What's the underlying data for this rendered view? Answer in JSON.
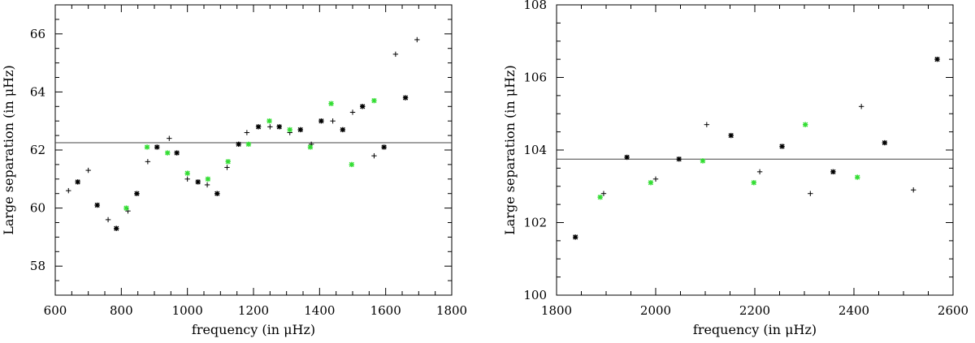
{
  "chart_data": [
    {
      "type": "scatter",
      "xlabel": "frequency (in μHz)",
      "ylabel": "Large separation (in μHz)",
      "xlim": [
        600,
        1800
      ],
      "ylim": [
        57,
        67
      ],
      "xticks": [
        600,
        800,
        1000,
        1200,
        1400,
        1600,
        1800
      ],
      "yticks": [
        58,
        60,
        62,
        64,
        66
      ],
      "hline": 62.25,
      "colors": {
        "black": "#000000",
        "green": "#33dd33",
        "line": "#444444"
      },
      "series": [
        {
          "marker": "plus",
          "color": "black",
          "points": [
            [
              640,
              60.6
            ],
            [
              700,
              61.3
            ],
            [
              760,
              59.6
            ],
            [
              820,
              59.9
            ],
            [
              880,
              61.6
            ],
            [
              945,
              62.4
            ],
            [
              1000,
              61.0
            ],
            [
              1060,
              60.8
            ],
            [
              1120,
              61.4
            ],
            [
              1180,
              62.6
            ],
            [
              1250,
              62.8
            ],
            [
              1310,
              62.6
            ],
            [
              1375,
              62.2
            ],
            [
              1440,
              63.0
            ],
            [
              1500,
              63.3
            ],
            [
              1565,
              61.8
            ],
            [
              1630,
              65.3
            ],
            [
              1695,
              65.8
            ]
          ]
        },
        {
          "marker": "asterisk",
          "color": "black",
          "points": [
            [
              668,
              60.9
            ],
            [
              727,
              60.1
            ],
            [
              785,
              59.3
            ],
            [
              847,
              60.5
            ],
            [
              908,
              62.1
            ],
            [
              968,
              61.9
            ],
            [
              1032,
              60.9
            ],
            [
              1090,
              60.5
            ],
            [
              1155,
              62.2
            ],
            [
              1215,
              62.8
            ],
            [
              1278,
              62.8
            ],
            [
              1342,
              62.7
            ],
            [
              1405,
              63.0
            ],
            [
              1470,
              62.7
            ],
            [
              1530,
              63.5
            ],
            [
              1595,
              62.1
            ],
            [
              1660,
              63.8
            ]
          ]
        },
        {
          "marker": "asterisk",
          "color": "green",
          "points": [
            [
              815,
              60.0
            ],
            [
              878,
              62.1
            ],
            [
              940,
              61.9
            ],
            [
              1000,
              61.2
            ],
            [
              1062,
              61.0
            ],
            [
              1123,
              61.6
            ],
            [
              1185,
              62.2
            ],
            [
              1248,
              63.0
            ],
            [
              1310,
              62.7
            ],
            [
              1372,
              62.1
            ],
            [
              1435,
              63.6
            ],
            [
              1497,
              61.5
            ],
            [
              1565,
              63.7
            ]
          ]
        }
      ]
    },
    {
      "type": "scatter",
      "xlabel": "frequency (in μHz)",
      "ylabel": "Large separation (in μHz)",
      "xlim": [
        1800,
        2600
      ],
      "ylim": [
        100,
        108
      ],
      "xticks": [
        1800,
        2000,
        2200,
        2400,
        2600
      ],
      "yticks": [
        100,
        102,
        104,
        106,
        108
      ],
      "hline": 103.75,
      "colors": {
        "black": "#000000",
        "green": "#33dd33",
        "line": "#444444"
      },
      "series": [
        {
          "marker": "plus",
          "color": "black",
          "points": [
            [
              1895,
              102.8
            ],
            [
              2000,
              103.2
            ],
            [
              2103,
              104.7
            ],
            [
              2210,
              103.4
            ],
            [
              2312,
              102.8
            ],
            [
              2415,
              105.2
            ],
            [
              2520,
              102.9
            ]
          ]
        },
        {
          "marker": "asterisk",
          "color": "black",
          "points": [
            [
              1838,
              101.6
            ],
            [
              1942,
              103.8
            ],
            [
              2047,
              103.75
            ],
            [
              2152,
              104.4
            ],
            [
              2255,
              104.1
            ],
            [
              2358,
              103.4
            ],
            [
              2462,
              104.2
            ],
            [
              2568,
              106.5
            ]
          ]
        },
        {
          "marker": "asterisk",
          "color": "green",
          "points": [
            [
              1888,
              102.7
            ],
            [
              1990,
              103.1
            ],
            [
              2095,
              103.7
            ],
            [
              2198,
              103.1
            ],
            [
              2302,
              104.7
            ],
            [
              2407,
              103.25
            ]
          ]
        }
      ]
    }
  ]
}
